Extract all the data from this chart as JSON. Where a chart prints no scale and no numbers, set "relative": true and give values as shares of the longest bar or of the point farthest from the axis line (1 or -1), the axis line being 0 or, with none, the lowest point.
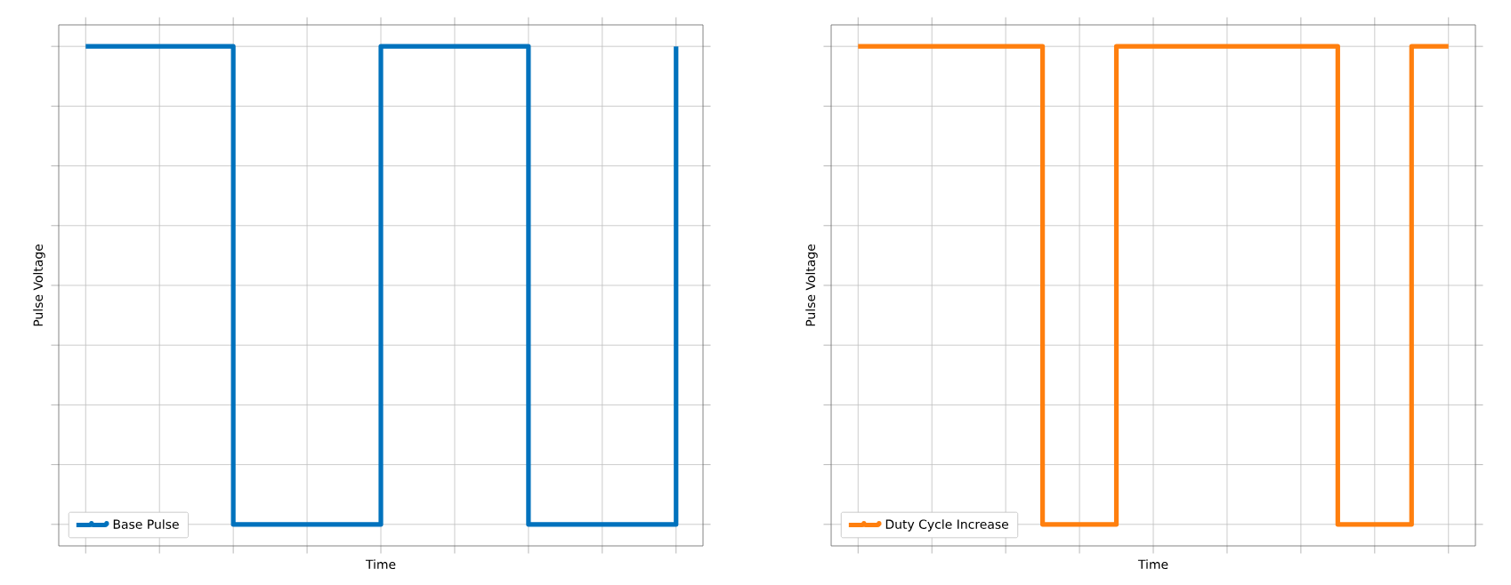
{
  "chart_data": [
    {
      "type": "step",
      "relative": true,
      "xlabel": "Time",
      "ylabel": "Pulse Voltage",
      "grid": true,
      "legend": "bottom left",
      "tick_labels": false,
      "categories": [
        null,
        null,
        null,
        null,
        null,
        null,
        null,
        null,
        null,
        null,
        null,
        null,
        null,
        null,
        null,
        null,
        null
      ],
      "series": [
        {
          "name": "Base Pulse",
          "color": "#0072bd",
          "values": [
            1,
            1,
            1,
            1,
            0,
            0,
            0,
            0,
            1,
            1,
            1,
            1,
            0,
            0,
            0,
            0,
            1
          ]
        }
      ]
    },
    {
      "type": "step",
      "relative": true,
      "xlabel": "Time",
      "ylabel": "Pulse Voltage",
      "grid": true,
      "legend": "bottom left",
      "tick_labels": false,
      "categories": [
        null,
        null,
        null,
        null,
        null,
        null,
        null,
        null,
        null,
        null,
        null,
        null,
        null,
        null,
        null,
        null,
        null
      ],
      "series": [
        {
          "name": "Duty Cycle Increase",
          "color": "#ff7f0e",
          "values": [
            1,
            1,
            1,
            1,
            1,
            0,
            0,
            1,
            1,
            1,
            1,
            1,
            1,
            0,
            0,
            1,
            1
          ]
        }
      ]
    }
  ]
}
